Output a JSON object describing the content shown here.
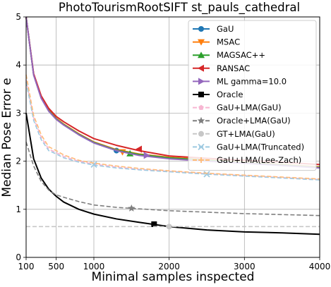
{
  "chart_data": {
    "type": "line",
    "title": "PhotoTourismRootSIFT st_pauls_cathedral",
    "xlabel": "Minimal samples inspected",
    "ylabel": "Median Pose Error e",
    "xlim": [
      100,
      4000
    ],
    "ylim": [
      0,
      5
    ],
    "xticks": [
      100,
      500,
      1000,
      2000,
      3000,
      4000
    ],
    "yticks": [
      0,
      1,
      2,
      3,
      4,
      5
    ],
    "grid": true,
    "legend_position": "top-right",
    "series": [
      {
        "name": "GaU",
        "color": "#1f77b4",
        "dash": "",
        "marker": "circle",
        "x": [
          100,
          200,
          300,
          400,
          500,
          600,
          800,
          1000,
          1300,
          1600,
          2000,
          2500,
          3000,
          3500,
          4000
        ],
        "y": [
          5.0,
          3.8,
          3.32,
          3.05,
          2.88,
          2.76,
          2.55,
          2.38,
          2.22,
          2.13,
          2.06,
          2.01,
          1.97,
          1.92,
          1.87
        ],
        "marker_x": [
          1300
        ],
        "marker_y": [
          2.22
        ]
      },
      {
        "name": "MSAC",
        "color": "#ff7f0e",
        "dash": "",
        "marker": "triangle-down",
        "x": [
          100,
          200,
          300,
          400,
          500,
          600,
          800,
          1000,
          1300,
          1600,
          2000,
          2500,
          3000,
          3500,
          4000
        ],
        "y": [
          5.0,
          3.8,
          3.33,
          3.06,
          2.89,
          2.77,
          2.57,
          2.4,
          2.24,
          2.15,
          2.08,
          2.03,
          1.98,
          1.93,
          1.88
        ],
        "marker_x": [
          1380
        ],
        "marker_y": [
          2.19
        ]
      },
      {
        "name": "MAGSAC++",
        "color": "#2ca02c",
        "dash": "",
        "marker": "triangle-up",
        "x": [
          100,
          200,
          300,
          400,
          500,
          600,
          800,
          1000,
          1300,
          1600,
          2000,
          2500,
          3000,
          3500,
          4000
        ],
        "y": [
          5.0,
          3.8,
          3.32,
          3.05,
          2.88,
          2.76,
          2.56,
          2.39,
          2.23,
          2.14,
          2.07,
          2.02,
          1.97,
          1.92,
          1.87
        ],
        "marker_x": [
          1480
        ],
        "marker_y": [
          2.16
        ]
      },
      {
        "name": "RANSAC",
        "color": "#d62728",
        "dash": "",
        "marker": "triangle-left",
        "x": [
          100,
          200,
          300,
          400,
          500,
          600,
          800,
          1000,
          1300,
          1600,
          2000,
          2500,
          3000,
          3500,
          4000
        ],
        "y": [
          5.0,
          3.82,
          3.36,
          3.1,
          2.93,
          2.82,
          2.63,
          2.47,
          2.33,
          2.22,
          2.11,
          2.06,
          2.02,
          1.98,
          1.93
        ],
        "marker_x": [
          1600
        ],
        "marker_y": [
          2.25
        ]
      },
      {
        "name": "ML   gamma=10.0",
        "color": "#9467bd",
        "dash": "",
        "marker": "triangle-right",
        "x": [
          100,
          200,
          300,
          400,
          500,
          600,
          800,
          1000,
          1300,
          1600,
          2000,
          2500,
          3000,
          3500,
          4000
        ],
        "y": [
          5.0,
          3.79,
          3.31,
          3.04,
          2.87,
          2.75,
          2.55,
          2.38,
          2.22,
          2.12,
          2.05,
          2.0,
          1.96,
          1.91,
          1.86
        ],
        "marker_x": [
          1700
        ],
        "marker_y": [
          2.12
        ]
      },
      {
        "name": "Oracle",
        "color": "#000000",
        "dash": "",
        "marker": "square",
        "x": [
          100,
          200,
          300,
          400,
          500,
          600,
          800,
          1000,
          1300,
          1600,
          2000,
          2500,
          3000,
          3500,
          4000
        ],
        "y": [
          3.0,
          2.05,
          1.65,
          1.42,
          1.27,
          1.15,
          1.0,
          0.9,
          0.8,
          0.73,
          0.64,
          0.57,
          0.53,
          0.51,
          0.48
        ],
        "marker_x": [
          1800
        ],
        "marker_y": [
          0.69
        ]
      },
      {
        "name": "GaU+LMA(GaU)",
        "color": "#f7b6d2",
        "dash": "6 3",
        "marker": "pentagon",
        "x": [
          100,
          200,
          300,
          400,
          500,
          600,
          800,
          1000,
          1300,
          1600,
          2000,
          2500,
          3000,
          3500,
          4000
        ],
        "y": [
          3.7,
          2.9,
          2.5,
          2.25,
          2.18,
          2.1,
          2.0,
          1.94,
          1.88,
          1.83,
          1.79,
          1.74,
          1.7,
          1.66,
          1.62
        ],
        "marker_x": [],
        "marker_y": []
      },
      {
        "name": "Oracle+LMA(GaU)",
        "color": "#7f7f7f",
        "dash": "6 3",
        "marker": "star",
        "x": [
          100,
          200,
          300,
          400,
          500,
          600,
          800,
          1000,
          1300,
          1600,
          2000,
          2500,
          3000,
          3500,
          4000
        ],
        "y": [
          2.4,
          1.9,
          1.58,
          1.4,
          1.3,
          1.25,
          1.16,
          1.09,
          1.04,
          1.01,
          0.97,
          0.94,
          0.91,
          0.89,
          0.87
        ],
        "marker_x": [
          1500
        ],
        "marker_y": [
          1.02
        ]
      },
      {
        "name": "GT+LMA(GaU)",
        "color": "#c7c7c7",
        "dash": "6 3",
        "marker": "circle",
        "x": [
          100,
          4000
        ],
        "y": [
          0.64,
          0.64
        ],
        "marker_x": [
          2000
        ],
        "marker_y": [
          0.64
        ]
      },
      {
        "name": "GaU+LMA(Truncated)",
        "color": "#9ecae1",
        "dash": "6 3",
        "marker": "x",
        "x": [
          100,
          200,
          300,
          400,
          500,
          600,
          800,
          1000,
          1300,
          1600,
          2000,
          2500,
          3000,
          3500,
          4000
        ],
        "y": [
          3.65,
          2.85,
          2.45,
          2.22,
          2.15,
          2.07,
          1.98,
          1.92,
          1.86,
          1.82,
          1.78,
          1.73,
          1.69,
          1.65,
          1.61
        ],
        "marker_x": [
          1000,
          2500
        ],
        "marker_y": [
          1.93,
          1.73
        ]
      },
      {
        "name": "GaU+LMA(Lee-Zach)",
        "color": "#ffbb78",
        "dash": "6 3",
        "marker": "plus",
        "x": [
          100,
          200,
          300,
          400,
          500,
          600,
          800,
          1000,
          1300,
          1600,
          2000,
          2500,
          3000,
          3500,
          4000
        ],
        "y": [
          3.8,
          2.95,
          2.55,
          2.3,
          2.22,
          2.13,
          2.02,
          1.96,
          1.9,
          1.85,
          1.8,
          1.75,
          1.71,
          1.67,
          1.63
        ],
        "marker_x": [],
        "marker_y": []
      }
    ]
  }
}
